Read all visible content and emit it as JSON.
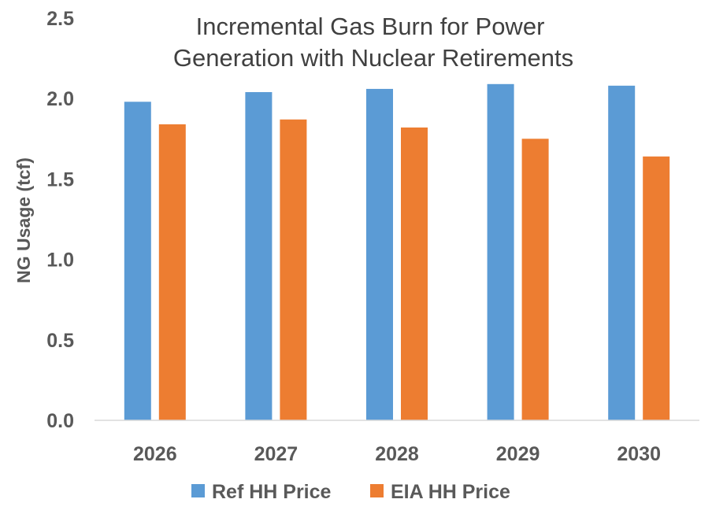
{
  "chart_data": {
    "type": "bar",
    "title_lines": [
      "Incremental Gas Burn for Power",
      "Generation with Nuclear Retirements"
    ],
    "xlabel": "",
    "ylabel": "NG Usage (tcf)",
    "categories": [
      "2026",
      "2027",
      "2028",
      "2029",
      "2030"
    ],
    "series": [
      {
        "name": "Ref HH Price",
        "color": "#5B9BD5",
        "values": [
          1.98,
          2.04,
          2.06,
          2.09,
          2.08
        ]
      },
      {
        "name": "EIA HH Price",
        "color": "#ED7D31",
        "values": [
          1.84,
          1.87,
          1.82,
          1.75,
          1.64
        ]
      }
    ],
    "ylim": [
      0,
      2.5
    ],
    "yticks": [
      "0.0",
      "0.5",
      "1.0",
      "1.5",
      "2.0",
      "2.5"
    ],
    "grid": false,
    "legend_position": "bottom"
  }
}
